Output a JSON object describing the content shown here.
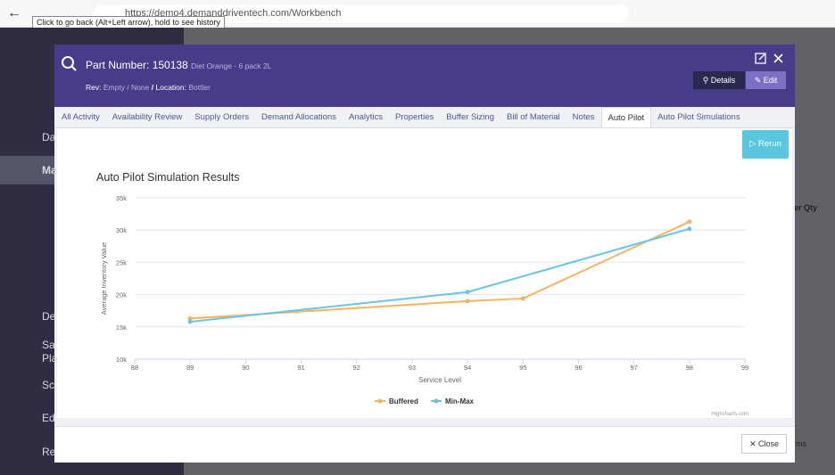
{
  "browser": {
    "url": "https://demo4.demanddriventech.com/Workbench",
    "tooltip": "Click to go back (Alt+Left arrow), hold to see history"
  },
  "sidebar": {
    "items": [
      "Da",
      "Ma",
      "De",
      "Sa",
      "Pla",
      "Sc",
      "Ed",
      "Re"
    ]
  },
  "background": {
    "column_header": "er Qty",
    "footer_text": "ms"
  },
  "modal": {
    "part_label": "Part Number:",
    "part_number": "150138",
    "description": "Diet Orange - 6 pack 2L",
    "rev_label": "Rev:",
    "rev": "Empty / None",
    "separator": "/",
    "location_label": "Location:",
    "location": "Bottler",
    "details_button": "Details",
    "edit_button": "Edit",
    "tabs": [
      "All Activity",
      "Availability Review",
      "Supply Orders",
      "Demand Allocations",
      "Analytics",
      "Properties",
      "Buffer Sizing",
      "Bill of Material",
      "Notes",
      "Auto Pilot",
      "Auto Pilot Simulations"
    ],
    "active_tab": "Auto Pilot",
    "rerun_button": "Rerun",
    "close_button": "Close"
  },
  "chart_data": {
    "type": "line",
    "title": "Auto Pilot Simulation Results",
    "x_label": "Service Level",
    "y_label": "Average Inventory Value",
    "xlim": [
      88,
      99
    ],
    "xticks": [
      88,
      89,
      90,
      91,
      92,
      93,
      94,
      95,
      96,
      97,
      98,
      99
    ],
    "ylim": [
      10000,
      35000
    ],
    "yticks": [
      {
        "value": 10000,
        "label": "10k"
      },
      {
        "value": 15000,
        "label": "15k"
      },
      {
        "value": 20000,
        "label": "20k"
      },
      {
        "value": 25000,
        "label": "25k"
      },
      {
        "value": 30000,
        "label": "30k"
      },
      {
        "value": 35000,
        "label": "35k"
      }
    ],
    "grid": true,
    "series": [
      {
        "name": "Buffered",
        "color": "#f5b461",
        "x": [
          89,
          94,
          95,
          98
        ],
        "values": [
          16300,
          19000,
          19400,
          31300
        ]
      },
      {
        "name": "Min-Max",
        "color": "#6cc4e4",
        "x": [
          89,
          94,
          98
        ],
        "values": [
          15800,
          20400,
          30200
        ]
      }
    ],
    "legend": "bottom",
    "credits": "Highcharts.com"
  }
}
